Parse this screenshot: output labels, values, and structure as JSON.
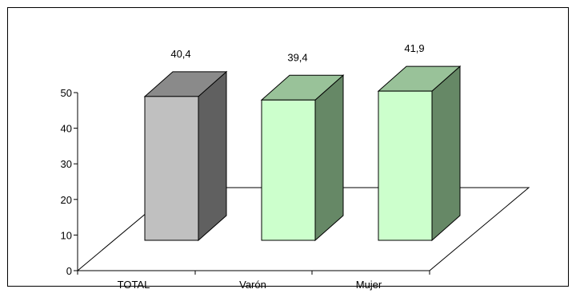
{
  "chart_data": {
    "type": "bar",
    "title": "",
    "xlabel": "",
    "ylabel": "",
    "categories": [
      "TOTAL",
      "Varón",
      "Mujer"
    ],
    "values": [
      40.4,
      39.4,
      41.9
    ],
    "value_labels": [
      "40,4",
      "39,4",
      "41,9"
    ],
    "ylim": [
      0,
      50
    ],
    "yticks": [
      0,
      10,
      20,
      30,
      40,
      50
    ],
    "grid": false,
    "legend": "none",
    "style": "3d-column",
    "colors": [
      {
        "front": "#c0c0c0",
        "side": "#606060",
        "top": "#8a8a8a"
      },
      {
        "front": "#ccffcc",
        "side": "#668866",
        "top": "#99c299"
      },
      {
        "front": "#ccffcc",
        "side": "#668866",
        "top": "#99c299"
      }
    ]
  }
}
